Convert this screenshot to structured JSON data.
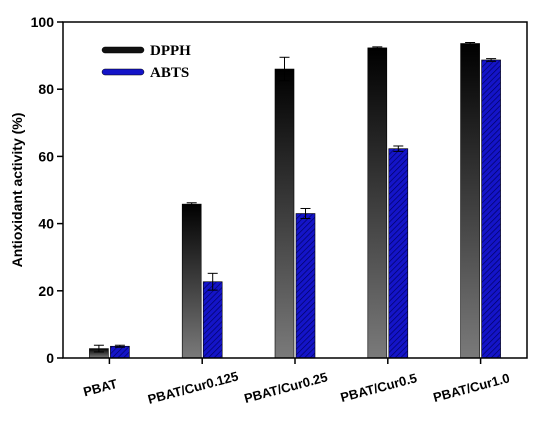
{
  "chart_data": {
    "type": "bar",
    "title": "",
    "xlabel": "",
    "ylabel": "Antioxidant activity (%)",
    "ylim": [
      0,
      100
    ],
    "yticks": [
      0,
      20,
      40,
      60,
      80,
      100
    ],
    "categories": [
      "PBAT",
      "PBAT/Cur0.125",
      "PBAT/Cur0.25",
      "PBAT/Cur0.5",
      "PBAT/Cur1.0"
    ],
    "series": [
      {
        "name": "DPPH",
        "values": [
          2.8,
          45.8,
          86.0,
          92.3,
          93.6
        ],
        "errors": [
          1.0,
          0.4,
          3.5,
          0.3,
          0.3
        ],
        "color": "#111111"
      },
      {
        "name": "ABTS",
        "values": [
          3.5,
          22.7,
          43.0,
          62.3,
          88.7
        ],
        "errors": [
          0.3,
          2.5,
          1.5,
          0.8,
          0.4
        ],
        "color": "#1414c8"
      }
    ],
    "legend_position": "top-left",
    "grid": false
  }
}
